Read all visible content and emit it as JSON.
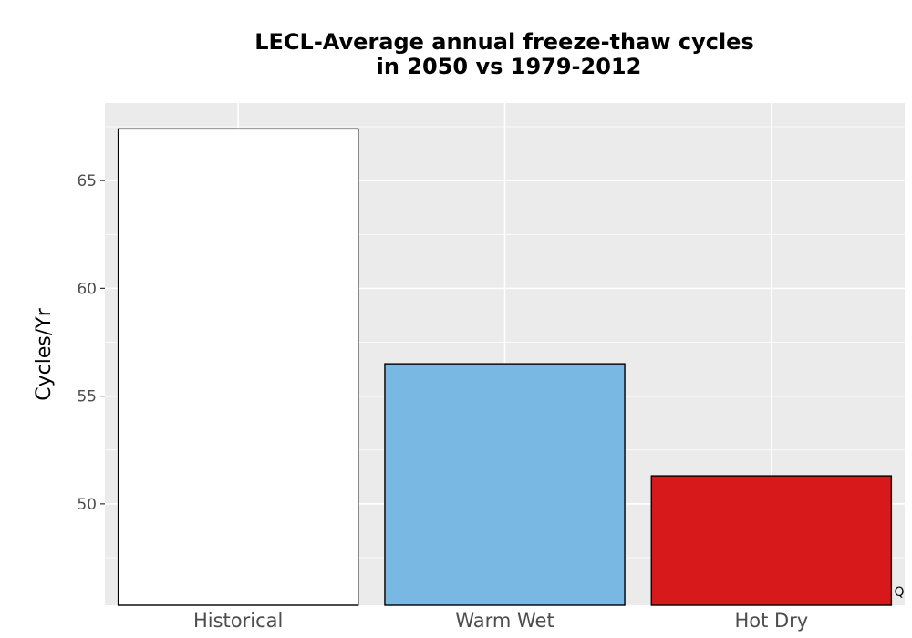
{
  "chart_data": {
    "type": "bar",
    "title_lines": [
      "LECL-Average annual freeze-thaw cycles",
      "in 2050 vs 1979-2012"
    ],
    "xlabel": "",
    "ylabel": "Cycles/Yr",
    "categories": [
      "Historical",
      "Warm Wet",
      "Hot Dry"
    ],
    "values": [
      67.4,
      56.5,
      51.3
    ],
    "colors": [
      "#ffffff",
      "#78b8e2",
      "#d7191c"
    ],
    "ylim": [
      45.3,
      68.6
    ],
    "yticks": [
      50,
      55,
      60,
      65
    ],
    "grid": true,
    "annotation": "Q"
  }
}
